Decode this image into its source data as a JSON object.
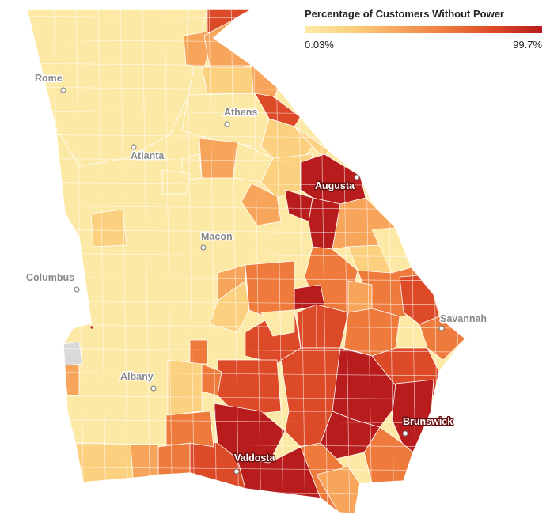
{
  "legend": {
    "title": "Percentage of Customers Without Power",
    "min_label": "0.03%",
    "max_label": "99.7%",
    "min_value": 0.03,
    "max_value": 99.7,
    "colors": [
      "#fde9a6",
      "#fbd07e",
      "#f6a55a",
      "#ee7a3c",
      "#dc4a28",
      "#b81c1c"
    ]
  },
  "map": {
    "region": "Georgia",
    "no_data_color": "#d9d9d9",
    "cities": [
      {
        "name": "Rome",
        "style": "light"
      },
      {
        "name": "Athens",
        "style": "light"
      },
      {
        "name": "Atlanta",
        "style": "light"
      },
      {
        "name": "Augusta",
        "style": "dark"
      },
      {
        "name": "Macon",
        "style": "light"
      },
      {
        "name": "Columbus",
        "style": "light"
      },
      {
        "name": "Savannah",
        "style": "light"
      },
      {
        "name": "Albany",
        "style": "light"
      },
      {
        "name": "Brunswick",
        "style": "dark"
      },
      {
        "name": "Valdosta",
        "style": "dark"
      }
    ]
  }
}
